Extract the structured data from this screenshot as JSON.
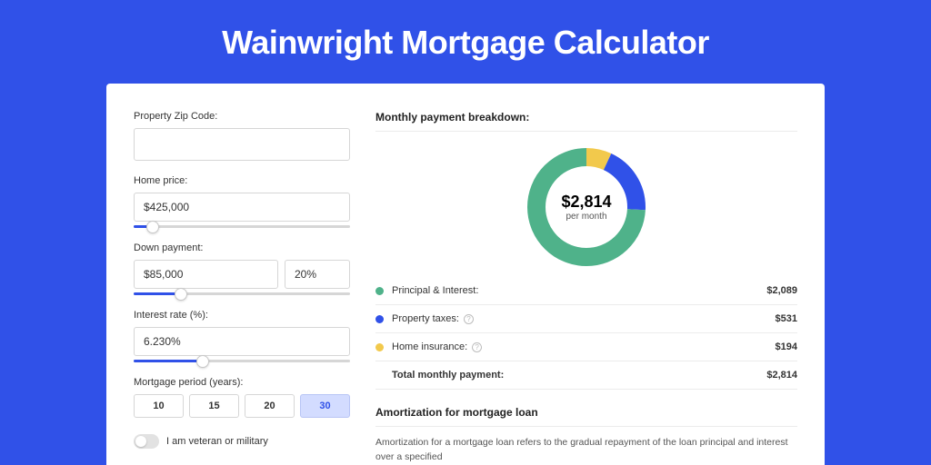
{
  "header": {
    "title": "Wainwright Mortgage Calculator"
  },
  "colors": {
    "brand": "#3051e8",
    "slice_pi": "#4fb28a",
    "slice_tax": "#3051e8",
    "slice_ins": "#f2c94c"
  },
  "form": {
    "zip": {
      "label": "Property Zip Code:",
      "value": ""
    },
    "price": {
      "label": "Home price:",
      "value": "$425,000",
      "slider_pct": 9
    },
    "down": {
      "label": "Down payment:",
      "amount": "$85,000",
      "pct": "20%",
      "slider_pct": 22
    },
    "rate": {
      "label": "Interest rate (%):",
      "value": "6.230%",
      "slider_pct": 32
    },
    "period": {
      "label": "Mortgage period (years):",
      "options": [
        "10",
        "15",
        "20",
        "30"
      ],
      "selected": "30"
    },
    "veteran_label": "I am veteran or military",
    "veteran_on": false
  },
  "breakdown": {
    "title": "Monthly payment breakdown:",
    "center_amount": "$2,814",
    "center_sub": "per month",
    "items": [
      {
        "key": "pi",
        "label": "Principal & Interest:",
        "value": "$2,089",
        "pct": 74.2,
        "info": false
      },
      {
        "key": "tax",
        "label": "Property taxes:",
        "value": "$531",
        "pct": 18.9,
        "info": true
      },
      {
        "key": "ins",
        "label": "Home insurance:",
        "value": "$194",
        "pct": 6.9,
        "info": true
      }
    ],
    "total_label": "Total monthly payment:",
    "total_value": "$2,814",
    "donut": {
      "stroke": 20,
      "radius": 55
    }
  },
  "amortization": {
    "title": "Amortization for mortgage loan",
    "text": "Amortization for a mortgage loan refers to the gradual repayment of the loan principal and interest over a specified"
  }
}
